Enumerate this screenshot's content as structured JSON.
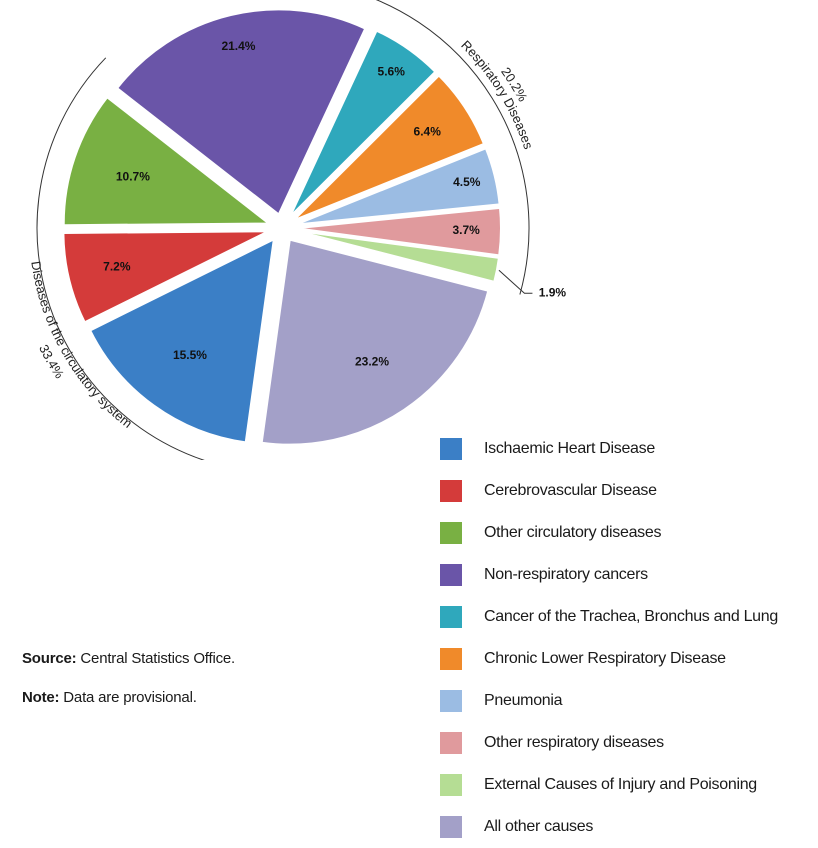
{
  "chart_data": {
    "type": "pie",
    "exploded": true,
    "slices": [
      {
        "name": "Non-respiratory cancers",
        "value": 21.4,
        "label": "21.4%",
        "color": "#6a55a8"
      },
      {
        "name": "Cancer of the Trachea, Bronchus and Lung",
        "value": 5.6,
        "label": "5.6%",
        "color": "#2fa8bc"
      },
      {
        "name": "Chronic Lower Respiratory Disease",
        "value": 6.4,
        "label": "6.4%",
        "color": "#f08a2a"
      },
      {
        "name": "Pneumonia",
        "value": 4.5,
        "label": "4.5%",
        "color": "#9bbce3"
      },
      {
        "name": "Other respiratory diseases",
        "value": 3.7,
        "label": "3.7%",
        "color": "#e09a9d"
      },
      {
        "name": "External Causes of Injury and Poisoning",
        "value": 1.9,
        "label": "1.9%",
        "color": "#b5dd94"
      },
      {
        "name": "All other causes",
        "value": 23.2,
        "label": "23.2%",
        "color": "#a3a0c8"
      },
      {
        "name": "Ischaemic Heart Disease",
        "value": 15.5,
        "label": "15.5%",
        "color": "#3b7fc6"
      },
      {
        "name": "Cerebrovascular Disease",
        "value": 7.2,
        "label": "7.2%",
        "color": "#d43b3a"
      },
      {
        "name": "Other circulatory diseases",
        "value": 10.7,
        "label": "10.7%",
        "color": "#79b043"
      }
    ],
    "groups": [
      {
        "name": "Respiratory Diseases",
        "value_label": "20.2%"
      },
      {
        "name": "Diseases of the circulatory system",
        "value_label": "33.4%"
      }
    ],
    "legend": {
      "placement": "bottom-right",
      "items": [
        {
          "label": "Ischaemic Heart Disease",
          "color": "#3b7fc6"
        },
        {
          "label": "Cerebrovascular Disease",
          "color": "#d43b3a"
        },
        {
          "label": "Other circulatory diseases",
          "color": "#79b043"
        },
        {
          "label": "Non-respiratory cancers",
          "color": "#6a55a8"
        },
        {
          "label": "Cancer of the Trachea, Bronchus and Lung",
          "color": "#2fa8bc"
        },
        {
          "label": "Chronic Lower Respiratory Disease",
          "color": "#f08a2a"
        },
        {
          "label": "Pneumonia",
          "color": "#9bbce3"
        },
        {
          "label": "Other respiratory diseases",
          "color": "#e09a9d"
        },
        {
          "label": "External Causes of Injury and Poisoning",
          "color": "#b5dd94"
        },
        {
          "label": "All other causes",
          "color": "#a3a0c8"
        }
      ]
    }
  },
  "notes": {
    "source_label": "Source:",
    "source_text": "Central Statistics Office.",
    "note_label": "Note:",
    "note_text": "Data are provisional."
  }
}
